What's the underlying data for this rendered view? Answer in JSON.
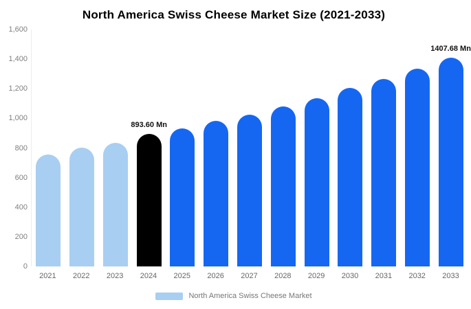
{
  "chart_data": {
    "type": "bar",
    "title": "North America Swiss Cheese Market Size (2021-2033)",
    "xlabel": "",
    "ylabel": "",
    "unit": "Mn",
    "categories": [
      "2021",
      "2022",
      "2023",
      "2024",
      "2025",
      "2026",
      "2027",
      "2028",
      "2029",
      "2030",
      "2031",
      "2032",
      "2033"
    ],
    "values": [
      756,
      802,
      835,
      893.6,
      932,
      983,
      1025,
      1080,
      1136,
      1206,
      1266,
      1336,
      1407.68
    ],
    "ylim": [
      0,
      1600
    ],
    "ytick_step": 200,
    "yticks": [
      "0",
      "200",
      "400",
      "600",
      "800",
      "1,000",
      "1,200",
      "1,400",
      "1,600"
    ],
    "bar_colors": [
      "#A8CEF2",
      "#A8CEF2",
      "#A8CEF2",
      "#000000",
      "#1567F2",
      "#1567F2",
      "#1567F2",
      "#1567F2",
      "#1567F2",
      "#1567F2",
      "#1567F2",
      "#1567F2",
      "#1567F2"
    ],
    "annotations": [
      {
        "index": 3,
        "text": "893.60 Mn"
      },
      {
        "index": 12,
        "text": "1407.68 Mn"
      }
    ],
    "grid": false,
    "legend_position": "bottom",
    "legend": [
      {
        "label": "North America Swiss Cheese Market",
        "color": "#A8CEF2"
      }
    ]
  }
}
